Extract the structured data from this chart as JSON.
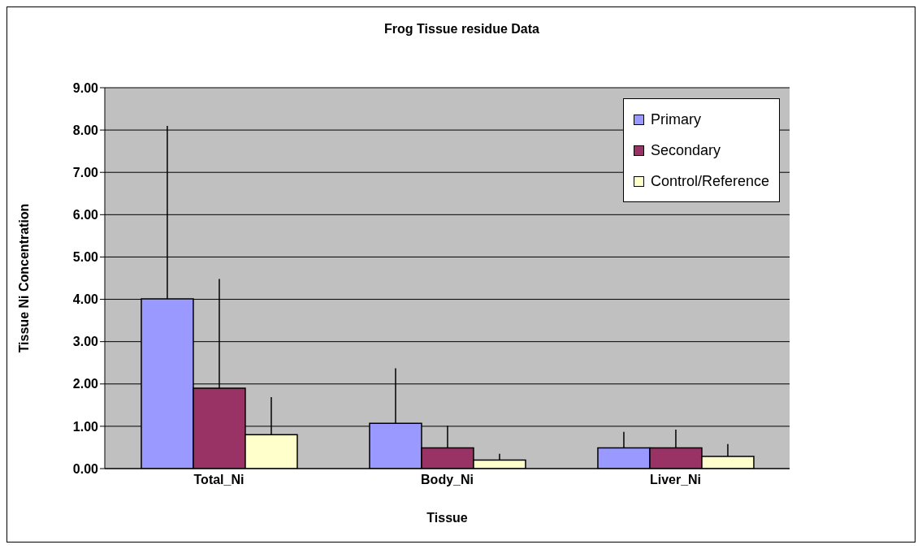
{
  "chart_data": {
    "type": "bar",
    "title": "Frog Tissue residue Data",
    "xlabel": "Tissue",
    "ylabel": "Tissue Ni Concentration",
    "categories": [
      "Total_Ni",
      "Body_Ni",
      "Liver_Ni"
    ],
    "series": [
      {
        "name": "Primary",
        "color": "#9999ff",
        "values": [
          4.01,
          1.07,
          0.49
        ],
        "errors": [
          [
            4.01,
            8.1
          ],
          [
            1.07,
            2.37
          ],
          [
            0.49,
            0.87
          ]
        ]
      },
      {
        "name": "Secondary",
        "color": "#993366",
        "values": [
          1.9,
          0.49,
          0.49
        ],
        "errors": [
          [
            1.9,
            4.48
          ],
          [
            0.49,
            1.01
          ],
          [
            0.49,
            0.92
          ]
        ]
      },
      {
        "name": "Control/Reference",
        "color": "#ffffcc",
        "values": [
          0.8,
          0.2,
          0.29
        ],
        "errors": [
          [
            0.8,
            1.69
          ],
          [
            0.2,
            0.35
          ],
          [
            0.29,
            0.58
          ]
        ]
      }
    ],
    "ylim": [
      0,
      9
    ],
    "yticks": [
      {
        "value": 0,
        "label": "0.00"
      },
      {
        "value": 1,
        "label": "1.00"
      },
      {
        "value": 2,
        "label": "2.00"
      },
      {
        "value": 3,
        "label": "3.00"
      },
      {
        "value": 4,
        "label": "4.00"
      },
      {
        "value": 5,
        "label": "5.00"
      },
      {
        "value": 6,
        "label": "6.00"
      },
      {
        "value": 7,
        "label": "7.00"
      },
      {
        "value": 8,
        "label": "8.00"
      },
      {
        "value": 9,
        "label": "9.00"
      }
    ],
    "grid": "y",
    "legend": "top right"
  }
}
